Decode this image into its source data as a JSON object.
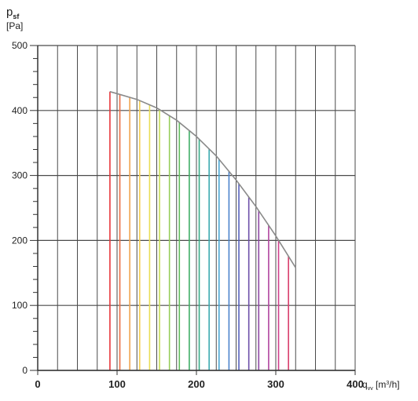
{
  "chart_data": {
    "type": "line",
    "y_axis": {
      "symbol": "p",
      "subscript": "sf",
      "unit": "[Pa]",
      "range": [
        0,
        500
      ],
      "ticks": [
        0,
        100,
        200,
        300,
        400,
        500
      ],
      "tick_labels": [
        "0",
        "100",
        "200",
        "300",
        "400",
        "500"
      ],
      "minor_step": 20
    },
    "x_axis": {
      "symbol": "q",
      "subscript": "vv",
      "unit_prefix": "[m",
      "unit_sup": "3",
      "unit_suffix": "/h]",
      "range": [
        0,
        400
      ],
      "ticks": [
        0,
        100,
        200,
        300,
        400
      ],
      "tick_labels": [
        "0",
        "100",
        "200",
        "300",
        "400"
      ],
      "grid_step": 25
    },
    "grid": true,
    "series": [
      {
        "x": [
          91,
          100,
          125,
          150,
          175,
          200,
          225,
          250,
          275,
          300,
          325
        ],
        "y": [
          429,
          426,
          417,
          404,
          385,
          360,
          330,
          293,
          252,
          207,
          158
        ]
      }
    ],
    "rainbow_fill": {
      "x_start": 91,
      "x_step": 12.5,
      "x_end": 325,
      "colors": [
        "#e8363b",
        "#eb6d43",
        "#f0a44f",
        "#f5cf52",
        "#e9de55",
        "#c7dc57",
        "#98cd5a",
        "#62bd5c",
        "#3fae65",
        "#36aa86",
        "#3cabb1",
        "#4aa6d3",
        "#4c84cc",
        "#5660bb",
        "#6d4ea9",
        "#8e47a3",
        "#b1459f",
        "#cf3f8c",
        "#d93c6b"
      ]
    }
  }
}
